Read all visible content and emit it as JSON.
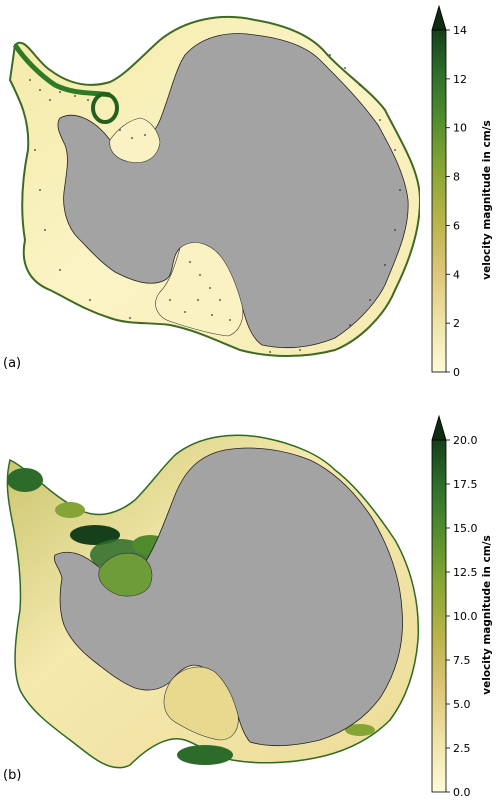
{
  "panels": [
    {
      "label": "(a)",
      "colorbar": {
        "title": "velocity magnitude in cm/s",
        "min": 0,
        "max": 14,
        "extend": "max",
        "ticks": [
          "0",
          "2",
          "4",
          "6",
          "8",
          "10",
          "12",
          "14"
        ]
      }
    },
    {
      "label": "(b)",
      "colorbar": {
        "title": "velocity magnitude in cm/s",
        "min": 0,
        "max": 20,
        "extend": "max",
        "ticks": [
          "0.0",
          "2.5",
          "5.0",
          "7.5",
          "10.0",
          "12.5",
          "15.0",
          "17.5",
          "20.0"
        ]
      }
    }
  ],
  "colors": {
    "land": "#a3a3a3",
    "ocean_low": "#fbf6cc",
    "ocean_mid": "#e2cf88",
    "ocean_high": "#3d8a2c",
    "colormap": [
      "#fefbd8",
      "#efe2a6",
      "#dcc476",
      "#b6b347",
      "#84a535",
      "#4f8b2d",
      "#2d6b2a",
      "#163f1b"
    ]
  }
}
